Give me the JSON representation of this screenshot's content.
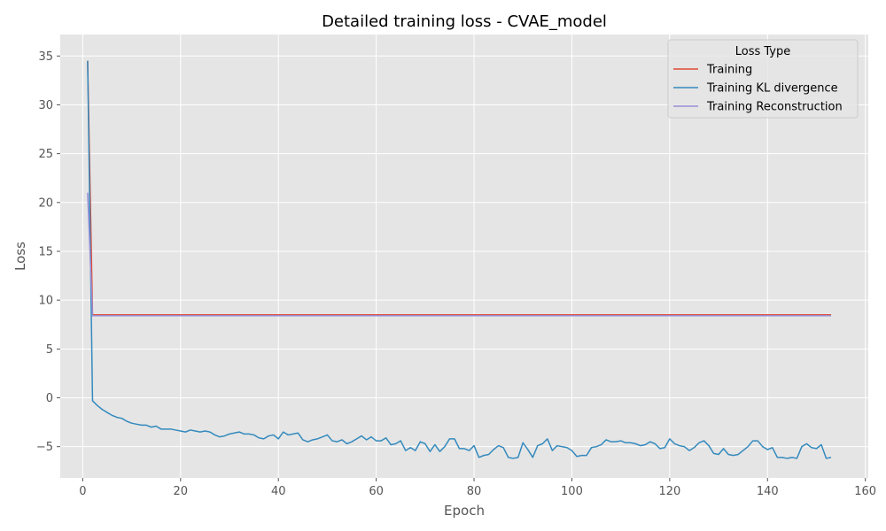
{
  "chart_data": {
    "type": "line",
    "title": "Detailed training loss - CVAE_model",
    "xlabel": "Epoch",
    "ylabel": "Loss",
    "xlim": [
      -4.6,
      160.6
    ],
    "ylim": [
      -8.2,
      37.2
    ],
    "xticks": [
      0,
      20,
      40,
      60,
      80,
      100,
      120,
      140,
      160
    ],
    "yticks": [
      -5,
      0,
      5,
      10,
      15,
      20,
      25,
      30,
      35
    ],
    "grid": true,
    "style": "ggplot",
    "legend": {
      "title": "Loss Type",
      "position": "top-right"
    },
    "series": [
      {
        "name": "Training",
        "color": "#E24A33",
        "points": [
          [
            1,
            34.5
          ],
          [
            2,
            8.5
          ],
          [
            153,
            8.5
          ]
        ]
      },
      {
        "name": "Training KL divergence",
        "color": "#348ABD",
        "points": [
          [
            1,
            34.5
          ],
          [
            2,
            -0.3
          ],
          [
            3,
            -0.8
          ],
          [
            4,
            -1.2
          ],
          [
            5,
            -1.5
          ],
          [
            6,
            -1.8
          ],
          [
            7,
            -2.0
          ],
          [
            8,
            -2.1
          ],
          [
            9,
            -2.4
          ],
          [
            10,
            -2.6
          ],
          [
            11,
            -2.7
          ],
          [
            12,
            -2.8
          ],
          [
            13,
            -2.8
          ],
          [
            14,
            -3.0
          ],
          [
            15,
            -2.9
          ],
          [
            16,
            -3.2
          ],
          [
            17,
            -3.2
          ],
          [
            18,
            -3.2
          ],
          [
            19,
            -3.3
          ],
          [
            20,
            -3.4
          ],
          [
            21,
            -3.5
          ],
          [
            22,
            -3.3
          ],
          [
            23,
            -3.4
          ],
          [
            24,
            -3.5
          ],
          [
            25,
            -3.4
          ],
          [
            26,
            -3.5
          ],
          [
            27,
            -3.8
          ],
          [
            28,
            -4.0
          ],
          [
            29,
            -3.9
          ],
          [
            30,
            -3.7
          ],
          [
            31,
            -3.6
          ],
          [
            32,
            -3.5
          ],
          [
            33,
            -3.7
          ],
          [
            34,
            -3.7
          ],
          [
            35,
            -3.8
          ],
          [
            36,
            -4.1
          ],
          [
            37,
            -4.2
          ],
          [
            38,
            -3.9
          ],
          [
            39,
            -3.8
          ],
          [
            40,
            -4.2
          ],
          [
            41,
            -3.5
          ],
          [
            42,
            -3.8
          ],
          [
            43,
            -3.7
          ],
          [
            44,
            -3.6
          ],
          [
            45,
            -4.3
          ],
          [
            46,
            -4.5
          ],
          [
            47,
            -4.3
          ],
          [
            48,
            -4.2
          ],
          [
            49,
            -4.0
          ],
          [
            50,
            -3.8
          ],
          [
            51,
            -4.4
          ],
          [
            52,
            -4.5
          ],
          [
            53,
            -4.3
          ],
          [
            54,
            -4.7
          ],
          [
            55,
            -4.5
          ],
          [
            56,
            -4.2
          ],
          [
            57,
            -3.9
          ],
          [
            58,
            -4.3
          ],
          [
            59,
            -4.0
          ],
          [
            60,
            -4.4
          ],
          [
            61,
            -4.4
          ],
          [
            62,
            -4.1
          ],
          [
            63,
            -4.8
          ],
          [
            64,
            -4.7
          ],
          [
            65,
            -4.4
          ],
          [
            66,
            -5.4
          ],
          [
            67,
            -5.1
          ],
          [
            68,
            -5.4
          ],
          [
            69,
            -4.5
          ],
          [
            70,
            -4.7
          ],
          [
            71,
            -5.5
          ],
          [
            72,
            -4.8
          ],
          [
            73,
            -5.5
          ],
          [
            74,
            -5.0
          ],
          [
            75,
            -4.2
          ],
          [
            76,
            -4.2
          ],
          [
            77,
            -5.2
          ],
          [
            78,
            -5.2
          ],
          [
            79,
            -5.4
          ],
          [
            80,
            -4.9
          ],
          [
            81,
            -6.1
          ],
          [
            82,
            -5.9
          ],
          [
            83,
            -5.8
          ],
          [
            84,
            -5.3
          ],
          [
            85,
            -4.9
          ],
          [
            86,
            -5.1
          ],
          [
            87,
            -6.1
          ],
          [
            88,
            -6.2
          ],
          [
            89,
            -6.1
          ],
          [
            90,
            -4.6
          ],
          [
            91,
            -5.3
          ],
          [
            92,
            -6.1
          ],
          [
            93,
            -4.9
          ],
          [
            94,
            -4.7
          ],
          [
            95,
            -4.2
          ],
          [
            96,
            -5.4
          ],
          [
            97,
            -4.9
          ],
          [
            98,
            -5.0
          ],
          [
            99,
            -5.1
          ],
          [
            100,
            -5.4
          ],
          [
            101,
            -6.0
          ],
          [
            102,
            -5.9
          ],
          [
            103,
            -5.9
          ],
          [
            104,
            -5.1
          ],
          [
            105,
            -5.0
          ],
          [
            106,
            -4.8
          ],
          [
            107,
            -4.3
          ],
          [
            108,
            -4.5
          ],
          [
            109,
            -4.5
          ],
          [
            110,
            -4.4
          ],
          [
            111,
            -4.6
          ],
          [
            112,
            -4.6
          ],
          [
            113,
            -4.7
          ],
          [
            114,
            -4.9
          ],
          [
            115,
            -4.8
          ],
          [
            116,
            -4.5
          ],
          [
            117,
            -4.7
          ],
          [
            118,
            -5.2
          ],
          [
            119,
            -5.1
          ],
          [
            120,
            -4.2
          ],
          [
            121,
            -4.7
          ],
          [
            122,
            -4.9
          ],
          [
            123,
            -5.0
          ],
          [
            124,
            -5.4
          ],
          [
            125,
            -5.1
          ],
          [
            126,
            -4.6
          ],
          [
            127,
            -4.4
          ],
          [
            128,
            -4.9
          ],
          [
            129,
            -5.7
          ],
          [
            130,
            -5.8
          ],
          [
            131,
            -5.2
          ],
          [
            132,
            -5.8
          ],
          [
            133,
            -5.9
          ],
          [
            134,
            -5.8
          ],
          [
            135,
            -5.4
          ],
          [
            136,
            -5.0
          ],
          [
            137,
            -4.4
          ],
          [
            138,
            -4.4
          ],
          [
            139,
            -5.0
          ],
          [
            140,
            -5.3
          ],
          [
            141,
            -5.1
          ],
          [
            142,
            -6.1
          ],
          [
            143,
            -6.1
          ],
          [
            144,
            -6.2
          ],
          [
            145,
            -6.1
          ],
          [
            146,
            -6.2
          ],
          [
            147,
            -5.0
          ],
          [
            148,
            -4.7
          ],
          [
            149,
            -5.1
          ],
          [
            150,
            -5.2
          ],
          [
            151,
            -4.8
          ],
          [
            152,
            -6.2
          ],
          [
            153,
            -6.1
          ]
        ]
      },
      {
        "name": "Training Reconstruction",
        "color": "#988ED5",
        "points": [
          [
            1,
            21.0
          ],
          [
            2,
            8.4
          ],
          [
            153,
            8.4
          ]
        ]
      }
    ]
  }
}
